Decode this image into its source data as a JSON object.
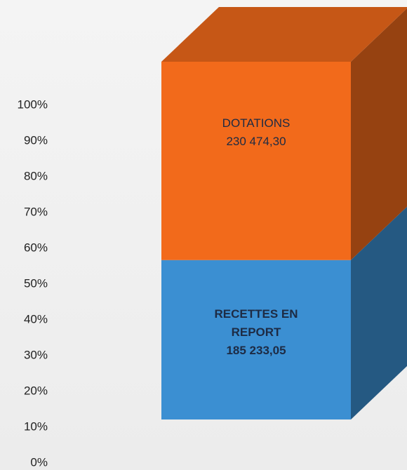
{
  "chart_data": {
    "type": "bar",
    "stacked_percent": true,
    "ylim": [
      0,
      100
    ],
    "yticks": [
      {
        "value": 0,
        "label": "0%"
      },
      {
        "value": 10,
        "label": "10%"
      },
      {
        "value": 20,
        "label": "20%"
      },
      {
        "value": 30,
        "label": "30%"
      },
      {
        "value": 40,
        "label": "40%"
      },
      {
        "value": 50,
        "label": "50%"
      },
      {
        "value": 60,
        "label": "60%"
      },
      {
        "value": 70,
        "label": "70%"
      },
      {
        "value": 80,
        "label": "80%"
      },
      {
        "value": 90,
        "label": "90%"
      },
      {
        "value": 100,
        "label": "100%"
      }
    ],
    "series": [
      {
        "name": "RECETTES EN REPORT",
        "color": "#3b8fd2",
        "values": [
          185233.05
        ],
        "value_labels": [
          "185 233,05"
        ]
      },
      {
        "name": "DOTATIONS",
        "color": "#f26a1b",
        "values": [
          230474.3
        ],
        "value_labels": [
          "230 474,30"
        ]
      }
    ]
  }
}
